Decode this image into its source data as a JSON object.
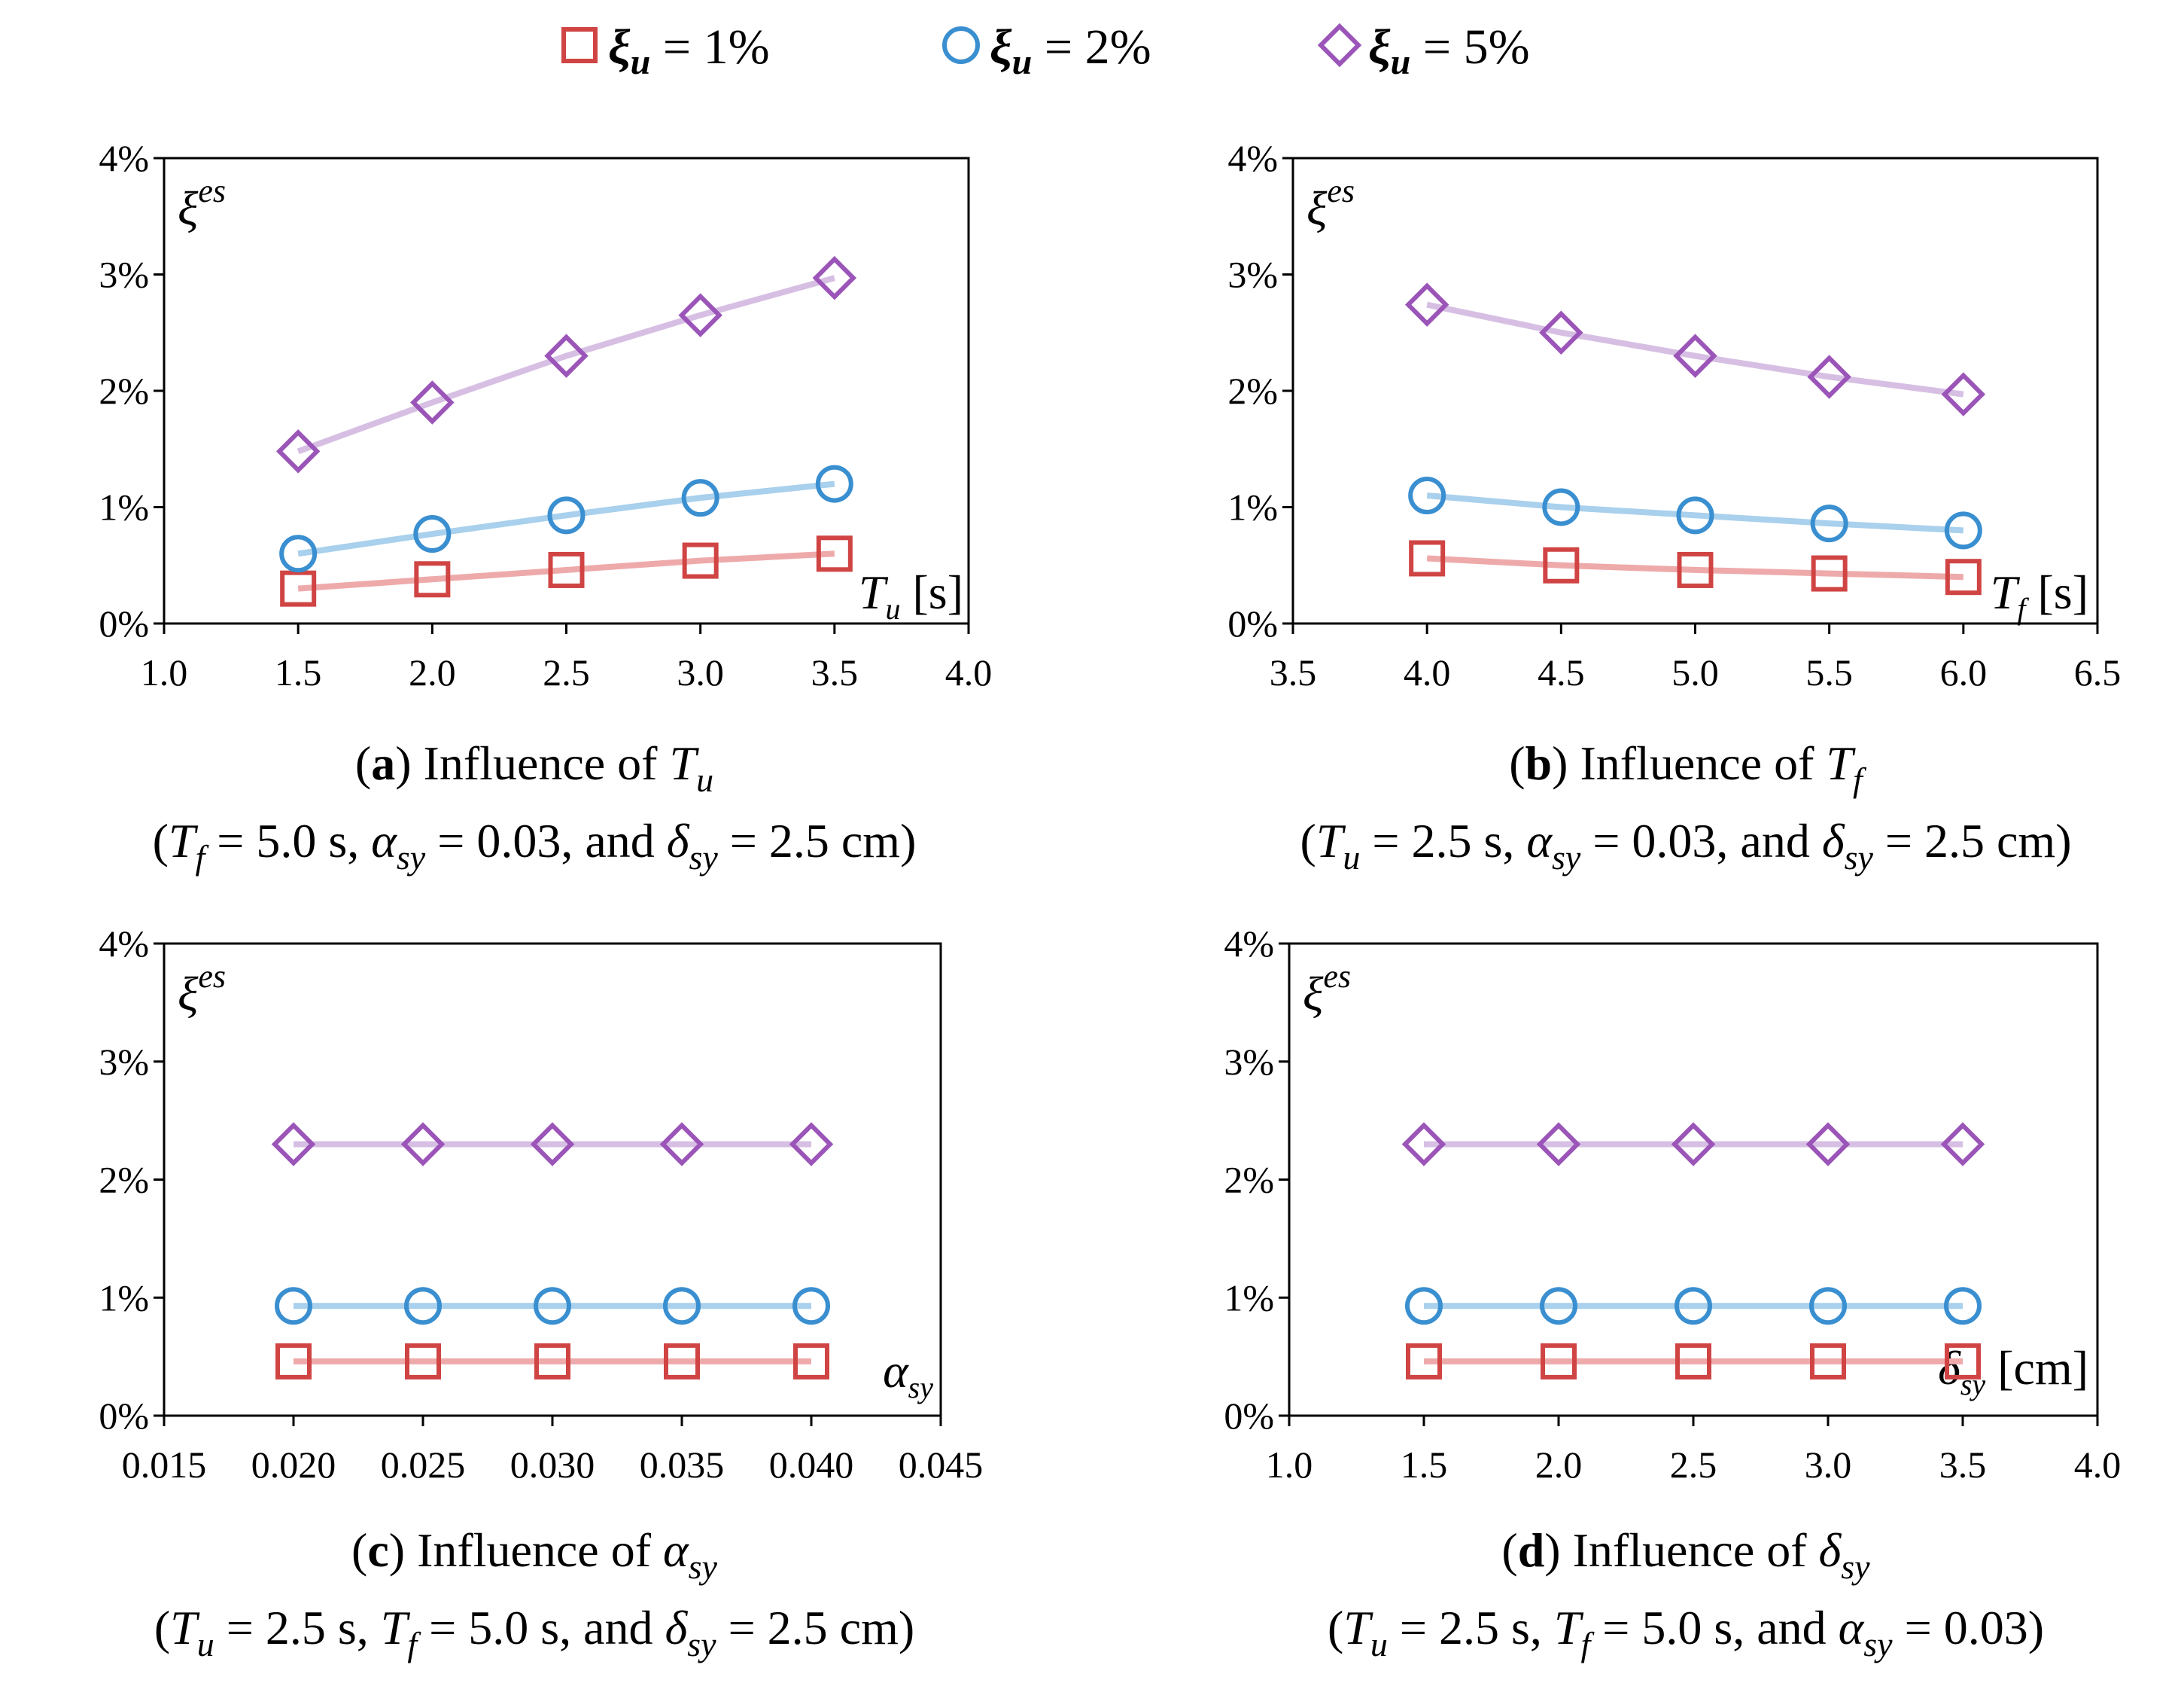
{
  "legend": [
    {
      "symbol": "ξ",
      "sub": "u",
      "rest": " = 1%",
      "marker": "square",
      "color": "#d04444",
      "light": "#eeaaaa"
    },
    {
      "symbol": "ξ",
      "sub": "u",
      "rest": " = 2%",
      "marker": "circle",
      "color": "#3a8fd0",
      "light": "#a9d0ec"
    },
    {
      "symbol": "ξ",
      "sub": "u",
      "rest": " = 5%",
      "marker": "diamond",
      "color": "#9b55b8",
      "light": "#d7bfe4"
    }
  ],
  "chart_data": [
    {
      "type": "line",
      "ylabel": {
        "base": "ξ",
        "sup": "es"
      },
      "xlabel": {
        "base": "T",
        "sub": "u",
        "unit": " [s]"
      },
      "xlim": [
        1.0,
        4.0
      ],
      "ylim": [
        0,
        4
      ],
      "xticks": [
        "1.0",
        "1.5",
        "2.0",
        "2.5",
        "3.0",
        "3.5",
        "4.0"
      ],
      "yticks": [
        "0%",
        "1%",
        "2%",
        "3%",
        "4%"
      ],
      "x": [
        1.5,
        2.0,
        2.5,
        3.0,
        3.5
      ],
      "series": [
        {
          "name": "ξu = 1%",
          "values": [
            0.3,
            0.38,
            0.46,
            0.54,
            0.6
          ]
        },
        {
          "name": "ξu = 2%",
          "values": [
            0.6,
            0.77,
            0.93,
            1.08,
            1.2
          ]
        },
        {
          "name": "ξu = 5%",
          "values": [
            1.48,
            1.9,
            2.3,
            2.65,
            2.97
          ]
        }
      ],
      "caption": {
        "tag": "a",
        "text": " Influence of ",
        "var": "T",
        "var_sub": "u",
        "params": [
          {
            "pre": "(",
            "var": "T",
            "sub": "f",
            "post": " = 5.0 s,  "
          },
          {
            "pre": "",
            "var": "α",
            "sub": "sy",
            "post": " = 0.03, and  "
          },
          {
            "pre": "",
            "var": "δ",
            "sub": "sy",
            "post": " = 2.5 cm)"
          }
        ]
      }
    },
    {
      "type": "line",
      "ylabel": {
        "base": "ξ",
        "sup": "es"
      },
      "xlabel": {
        "base": "T",
        "sub": "f",
        "unit": " [s]"
      },
      "xlim": [
        3.5,
        6.5
      ],
      "ylim": [
        0,
        4
      ],
      "xticks": [
        "3.5",
        "4.0",
        "4.5",
        "5.0",
        "5.5",
        "6.0",
        "6.5"
      ],
      "yticks": [
        "0%",
        "1%",
        "2%",
        "3%",
        "4%"
      ],
      "x": [
        4.0,
        4.5,
        5.0,
        5.5,
        6.0
      ],
      "series": [
        {
          "name": "ξu = 1%",
          "values": [
            0.56,
            0.5,
            0.46,
            0.43,
            0.4
          ]
        },
        {
          "name": "ξu = 2%",
          "values": [
            1.1,
            1.0,
            0.93,
            0.86,
            0.8
          ]
        },
        {
          "name": "ξu = 5%",
          "values": [
            2.74,
            2.5,
            2.3,
            2.12,
            1.97
          ]
        }
      ],
      "caption": {
        "tag": "b",
        "text": " Influence of ",
        "var": "T",
        "var_sub": "f",
        "params": [
          {
            "pre": "(",
            "var": "T",
            "sub": "u",
            "post": " = 2.5 s,  "
          },
          {
            "pre": "",
            "var": "α",
            "sub": "sy",
            "post": " = 0.03, and  "
          },
          {
            "pre": "",
            "var": "δ",
            "sub": "sy",
            "post": " = 2.5 cm)"
          }
        ]
      }
    },
    {
      "type": "line",
      "ylabel": {
        "base": "ξ",
        "sup": "es"
      },
      "xlabel": {
        "base": "α",
        "sub": "sy",
        "unit": ""
      },
      "xlim": [
        0.015,
        0.045
      ],
      "ylim": [
        0,
        4
      ],
      "xticks": [
        "0.015",
        "0.020",
        "0.025",
        "0.030",
        "0.035",
        "0.040",
        "0.045"
      ],
      "yticks": [
        "0%",
        "1%",
        "2%",
        "3%",
        "4%"
      ],
      "x": [
        0.02,
        0.025,
        0.03,
        0.035,
        0.04
      ],
      "series": [
        {
          "name": "ξu = 1%",
          "values": [
            0.46,
            0.46,
            0.46,
            0.46,
            0.46
          ]
        },
        {
          "name": "ξu = 2%",
          "values": [
            0.93,
            0.93,
            0.93,
            0.93,
            0.93
          ]
        },
        {
          "name": "ξu = 5%",
          "values": [
            2.3,
            2.3,
            2.3,
            2.3,
            2.3
          ]
        }
      ],
      "caption": {
        "tag": "c",
        "text": " Influence of ",
        "var": "α",
        "var_sub": "sy",
        "params": [
          {
            "pre": "(",
            "var": "T",
            "sub": "u",
            "post": " = 2.5 s,  "
          },
          {
            "pre": "",
            "var": "T",
            "sub": "f",
            "post": " = 5.0 s, and  "
          },
          {
            "pre": "",
            "var": "δ",
            "sub": "sy",
            "post": " = 2.5 cm)"
          }
        ]
      }
    },
    {
      "type": "line",
      "ylabel": {
        "base": "ξ",
        "sup": "es"
      },
      "xlabel": {
        "base": "δ",
        "sub": "sy",
        "unit": " [cm]"
      },
      "xlim": [
        1.0,
        4.0
      ],
      "ylim": [
        0,
        4
      ],
      "xticks": [
        "1.0",
        "1.5",
        "2.0",
        "2.5",
        "3.0",
        "3.5",
        "4.0"
      ],
      "yticks": [
        "0%",
        "1%",
        "2%",
        "3%",
        "4%"
      ],
      "x": [
        1.5,
        2.0,
        2.5,
        3.0,
        3.5
      ],
      "series": [
        {
          "name": "ξu = 1%",
          "values": [
            0.46,
            0.46,
            0.46,
            0.46,
            0.46
          ]
        },
        {
          "name": "ξu = 2%",
          "values": [
            0.93,
            0.93,
            0.93,
            0.93,
            0.93
          ]
        },
        {
          "name": "ξu = 5%",
          "values": [
            2.3,
            2.3,
            2.3,
            2.3,
            2.3
          ]
        }
      ],
      "caption": {
        "tag": "d",
        "text": " Influence of ",
        "var": "δ",
        "var_sub": "sy",
        "params": [
          {
            "pre": "(",
            "var": "T",
            "sub": "u",
            "post": " = 2.5 s,  "
          },
          {
            "pre": "",
            "var": "T",
            "sub": "f",
            "post": " = 5.0 s, and  "
          },
          {
            "pre": "",
            "var": "α",
            "sub": "sy",
            "post": " = 0.03)"
          }
        ]
      }
    }
  ]
}
